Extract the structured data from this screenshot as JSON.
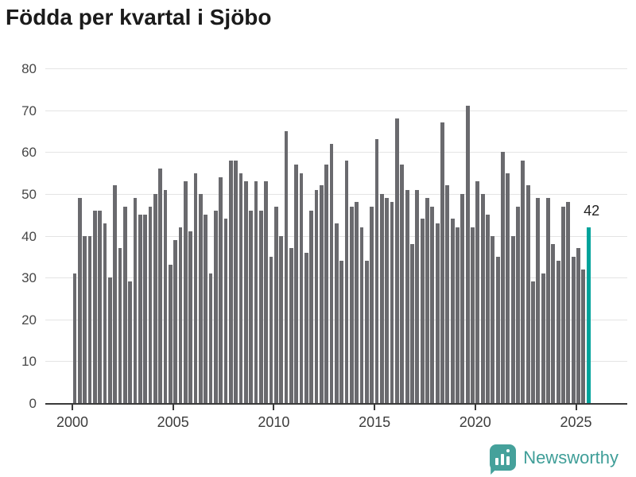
{
  "page": {
    "title": "Födda per kvartal i Sjöbo"
  },
  "chart_data": {
    "type": "bar",
    "title": "Födda per kvartal i Sjöbo",
    "x_unit": "quarter",
    "start_period": "2000-Q1",
    "end_period": "2025-Q3",
    "values": [
      31,
      49,
      40,
      40,
      46,
      46,
      43,
      30,
      52,
      37,
      47,
      29,
      49,
      45,
      45,
      47,
      50,
      56,
      51,
      33,
      39,
      42,
      53,
      41,
      55,
      50,
      45,
      31,
      46,
      54,
      44,
      58,
      58,
      55,
      53,
      46,
      53,
      46,
      53,
      35,
      47,
      40,
      65,
      37,
      57,
      55,
      36,
      46,
      51,
      52,
      57,
      62,
      43,
      34,
      58,
      47,
      48,
      42,
      34,
      47,
      63,
      50,
      49,
      48,
      68,
      57,
      51,
      38,
      51,
      44,
      49,
      47,
      43,
      67,
      52,
      44,
      42,
      50,
      71,
      42,
      53,
      50,
      45,
      40,
      35,
      60,
      55,
      40,
      47,
      58,
      52,
      29,
      49,
      31,
      49,
      38,
      34,
      47,
      48,
      35,
      37,
      32,
      42
    ],
    "x_tick_labels": [
      "2000",
      "2005",
      "2010",
      "2015",
      "2020",
      "2025"
    ],
    "y_ticks": [
      0,
      10,
      20,
      30,
      40,
      50,
      60,
      70,
      80
    ],
    "ylim": [
      0,
      80
    ],
    "grid": true,
    "legend_position": "none",
    "bar_color": "#6a6a6e",
    "highlight_color": "#00a39b",
    "highlight_index": 102,
    "highlight_value_label": "42",
    "axis_color": "#3a3a3a",
    "grid_color": "#e4e4e4"
  },
  "branding": {
    "name": "Newsworthy",
    "color": "#3f9e98",
    "icon_color": "#45a19b"
  }
}
